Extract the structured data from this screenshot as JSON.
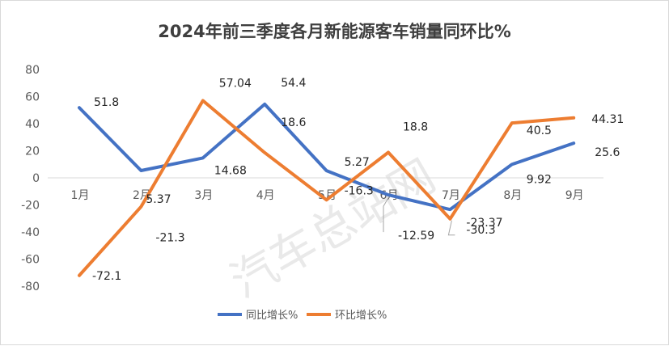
{
  "chart_data": {
    "type": "line",
    "title": "2024年前三季度各月新能源客车销量同环比%",
    "categories": [
      "1月",
      "2月",
      "3月",
      "4月",
      "5月",
      "6月",
      "7月",
      "8月",
      "9月"
    ],
    "series": [
      {
        "name": "同比增长%",
        "color": "#4472c4",
        "values": [
          51.8,
          5.37,
          14.68,
          54.4,
          5.27,
          -12.59,
          -23.37,
          9.92,
          25.6
        ]
      },
      {
        "name": "环比增长%",
        "color": "#ed7d31",
        "values": [
          -72.1,
          -21.3,
          57.04,
          18.6,
          -16.3,
          18.8,
          -30.3,
          40.5,
          44.31
        ]
      }
    ],
    "ylim": [
      -80,
      80
    ],
    "yticks": [
      80,
      60,
      40,
      20,
      0,
      -20,
      -40,
      -60,
      -80
    ],
    "grid": false,
    "legend": "bottom",
    "watermark": "汽车总站网"
  }
}
